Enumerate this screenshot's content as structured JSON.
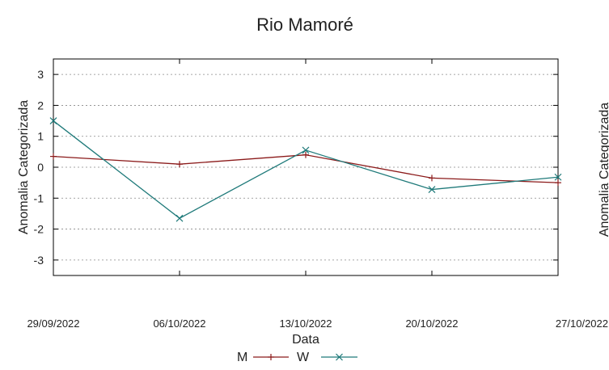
{
  "chart_data": {
    "type": "line",
    "title": "Rio Mamoré",
    "xlabel": "Data",
    "ylabel": "Anomalia Categorizada",
    "ylabel_secondary": "Anomalia Categorizada",
    "categories": [
      "29/09/2022",
      "06/10/2022",
      "13/10/2022",
      "20/10/2022",
      "27/10/2022"
    ],
    "ylim": [
      -3.5,
      3.5
    ],
    "yticks": [
      3,
      2,
      1,
      0,
      -1,
      -2,
      -3
    ],
    "ytick_labels": [
      "3",
      "2",
      "1",
      "0",
      "-1",
      "-2",
      "-3"
    ],
    "grid": true,
    "legend_position": "bottom-center",
    "series": [
      {
        "name": "M",
        "color": "#8b1a1a",
        "marker": "plus",
        "values": [
          0.35,
          0.1,
          0.4,
          -0.35,
          -0.5
        ]
      },
      {
        "name": "W",
        "color": "#1f7a7a",
        "marker": "x",
        "values": [
          1.5,
          -1.65,
          0.55,
          -0.72,
          -0.32
        ]
      }
    ]
  }
}
